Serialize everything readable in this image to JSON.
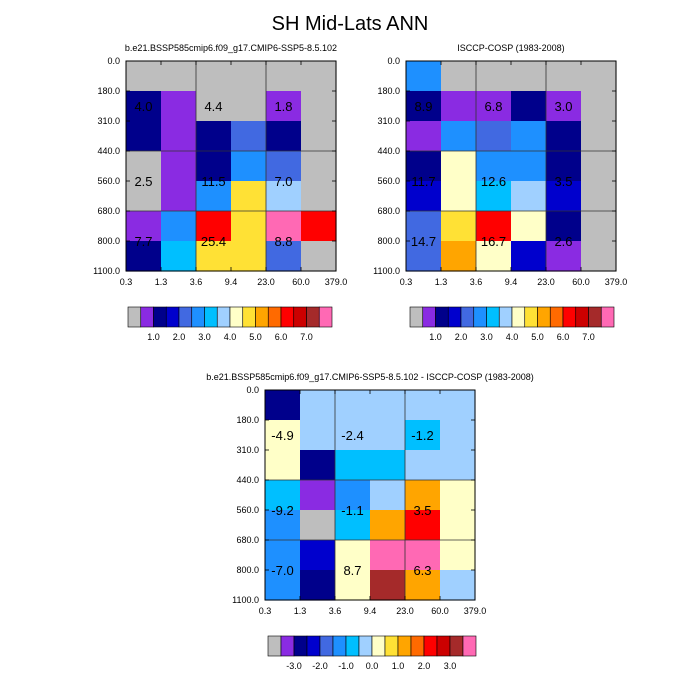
{
  "figure": {
    "title": "SH Mid-Lats ANN"
  },
  "colors": {
    "missing": "#bebebe",
    "mean_palette": [
      "#8a2be2",
      "#00008b",
      "#0000cd",
      "#4169e1",
      "#1e90ff",
      "#00bfff",
      "#a0d0ff",
      "#ffffc8",
      "#ffe135",
      "#ffa500",
      "#ff6a00",
      "#ff0000",
      "#cc0000",
      "#a52a2a",
      "#ff69b4"
    ],
    "diff_palette": [
      "#8a2be2",
      "#00008b",
      "#0000cd",
      "#4169e1",
      "#1e90ff",
      "#00bfff",
      "#a0d0ff",
      "#ffffc8",
      "#ffe135",
      "#ffa500",
      "#ff6a00",
      "#ff0000",
      "#cc0000",
      "#a52a2a",
      "#ff69b4"
    ]
  },
  "chart_data": [
    {
      "type": "heatmap",
      "title": "b.e21.BSSP585cmip6.f09_g17.CMIP6-SSP5-8.5.102",
      "x_edges": [
        "0.3",
        "1.3",
        "3.6",
        "9.4",
        "23.0",
        "60.0",
        "379.0"
      ],
      "y_edges": [
        "0.0",
        "180.0",
        "310.0",
        "440.0",
        "560.0",
        "680.0",
        "800.0",
        "1100.0"
      ],
      "cells": [
        [
          -1,
          -1,
          -1,
          -1,
          -1,
          -1
        ],
        [
          1,
          0,
          -1,
          -1,
          0,
          -1
        ],
        [
          1,
          0,
          1,
          3,
          1,
          -1
        ],
        [
          -1,
          0,
          1,
          4,
          3,
          -1
        ],
        [
          -1,
          0,
          4,
          8,
          6,
          -1
        ],
        [
          0,
          4,
          11,
          8,
          14,
          11
        ],
        [
          1,
          5,
          8,
          8,
          3,
          -1
        ]
      ],
      "labels": [
        {
          "text": "4.0",
          "col": 0.5,
          "row": 1.5
        },
        {
          "text": "4.4",
          "col": 2.5,
          "row": 1.5
        },
        {
          "text": "1.8",
          "col": 4.5,
          "row": 1.5
        },
        {
          "text": "2.5",
          "col": 0.5,
          "row": 4.0
        },
        {
          "text": "11.5",
          "col": 2.5,
          "row": 4.0
        },
        {
          "text": "7.0",
          "col": 4.5,
          "row": 4.0
        },
        {
          "text": "7.7",
          "col": 0.5,
          "row": 6.0
        },
        {
          "text": "25.4",
          "col": 2.5,
          "row": 6.0
        },
        {
          "text": "8.8",
          "col": 4.5,
          "row": 6.0
        }
      ],
      "colorbar_labels": [
        "1.0",
        "2.0",
        "3.0",
        "4.0",
        "5.0",
        "6.0",
        "7.0"
      ]
    },
    {
      "type": "heatmap",
      "title": "ISCCP-COSP (1983-2008)",
      "x_edges": [
        "0.3",
        "1.3",
        "3.6",
        "9.4",
        "23.0",
        "60.0",
        "379.0"
      ],
      "y_edges": [
        "0.0",
        "180.0",
        "310.0",
        "440.0",
        "560.0",
        "680.0",
        "800.0",
        "1100.0"
      ],
      "cells": [
        [
          4,
          -1,
          -1,
          -1,
          -1,
          -1
        ],
        [
          1,
          0,
          0,
          1,
          0,
          -1
        ],
        [
          0,
          4,
          3,
          4,
          1,
          -1
        ],
        [
          1,
          7,
          4,
          4,
          1,
          -1
        ],
        [
          2,
          7,
          5,
          6,
          2,
          -1
        ],
        [
          3,
          8,
          11,
          7,
          1,
          -1
        ],
        [
          3,
          9,
          7,
          2,
          0,
          -1
        ]
      ],
      "labels": [
        {
          "text": "8.9",
          "col": 0.5,
          "row": 1.5
        },
        {
          "text": "6.8",
          "col": 2.5,
          "row": 1.5
        },
        {
          "text": "3.0",
          "col": 4.5,
          "row": 1.5
        },
        {
          "text": "11.7",
          "col": 0.5,
          "row": 4.0
        },
        {
          "text": "12.6",
          "col": 2.5,
          "row": 4.0
        },
        {
          "text": "3.5",
          "col": 4.5,
          "row": 4.0
        },
        {
          "text": "14.7",
          "col": 0.5,
          "row": 6.0
        },
        {
          "text": "16.7",
          "col": 2.5,
          "row": 6.0
        },
        {
          "text": "2.6",
          "col": 4.5,
          "row": 6.0
        }
      ],
      "colorbar_labels": [
        "1.0",
        "2.0",
        "3.0",
        "4.0",
        "5.0",
        "6.0",
        "7.0"
      ]
    },
    {
      "type": "heatmap",
      "title": "b.e21.BSSP585cmip6.f09_g17.CMIP6-SSP5-8.5.102 - ISCCP-COSP (1983-2008)",
      "x_edges": [
        "0.3",
        "1.3",
        "3.6",
        "9.4",
        "23.0",
        "60.0",
        "379.0"
      ],
      "y_edges": [
        "0.0",
        "180.0",
        "310.0",
        "440.0",
        "560.0",
        "680.0",
        "800.0",
        "1100.0"
      ],
      "cells": [
        [
          1,
          6,
          6,
          6,
          6,
          6
        ],
        [
          7,
          6,
          6,
          6,
          5,
          6
        ],
        [
          7,
          1,
          5,
          5,
          6,
          6
        ],
        [
          5,
          0,
          4,
          6,
          9,
          7
        ],
        [
          4,
          -1,
          5,
          9,
          11,
          7
        ],
        [
          4,
          2,
          7,
          14,
          14,
          7
        ],
        [
          4,
          1,
          7,
          13,
          9,
          6
        ]
      ],
      "labels": [
        {
          "text": "-4.9",
          "col": 0.5,
          "row": 1.5
        },
        {
          "text": "-2.4",
          "col": 2.5,
          "row": 1.5
        },
        {
          "text": "-1.2",
          "col": 4.5,
          "row": 1.5
        },
        {
          "text": "-9.2",
          "col": 0.5,
          "row": 4.0
        },
        {
          "text": "-1.1",
          "col": 2.5,
          "row": 4.0
        },
        {
          "text": "3.5",
          "col": 4.5,
          "row": 4.0
        },
        {
          "text": "-7.0",
          "col": 0.5,
          "row": 6.0
        },
        {
          "text": "8.7",
          "col": 2.5,
          "row": 6.0
        },
        {
          "text": "6.3",
          "col": 4.5,
          "row": 6.0
        }
      ],
      "colorbar_labels": [
        "-3.0",
        "-2.0",
        "-1.0",
        "0.0",
        "1.0",
        "2.0",
        "3.0"
      ]
    }
  ]
}
